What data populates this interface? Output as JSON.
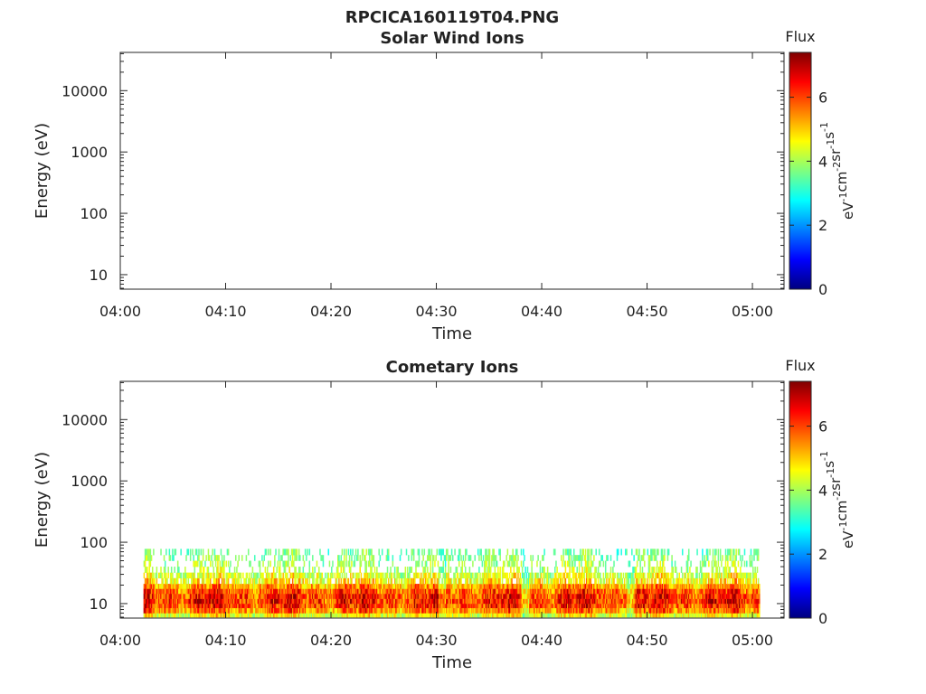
{
  "figure_title": "RPCICA160119T04.PNG",
  "colorbar": {
    "title": "Flux",
    "unit_parts": [
      "eV",
      "-1",
      "cm",
      "-2",
      "sr",
      "-1",
      "s",
      "-1"
    ],
    "ticks": [
      0,
      2,
      4,
      6
    ],
    "range": [
      0,
      7.4
    ],
    "colormap": "jet",
    "colormap_stops": [
      "#00007f",
      "#0000ff",
      "#007fff",
      "#00ffff",
      "#7fff7f",
      "#ffff00",
      "#ff7f00",
      "#ff0000",
      "#7f0000"
    ]
  },
  "chart_data": [
    {
      "type": "heatmap",
      "title": "Solar Wind Ions",
      "xlabel": "Time",
      "ylabel": "Energy (eV)",
      "x_ticks": [
        "04:00",
        "04:10",
        "04:20",
        "04:30",
        "04:40",
        "04:50",
        "05:00"
      ],
      "x_range_minutes": [
        0,
        63
      ],
      "y_scale": "log",
      "y_ticks": [
        "10",
        "100",
        "1000",
        "10000"
      ],
      "y_range": [
        5.8,
        42000
      ],
      "grid": false,
      "cells": []
    },
    {
      "type": "heatmap",
      "title": "Cometary Ions",
      "xlabel": "Time",
      "ylabel": "Energy (eV)",
      "x_ticks": [
        "04:00",
        "04:10",
        "04:20",
        "04:30",
        "04:40",
        "04:50",
        "05:00"
      ],
      "x_range_minutes": [
        0,
        63
      ],
      "y_scale": "log",
      "y_ticks": [
        "10",
        "100",
        "1000",
        "10000"
      ],
      "y_range": [
        5.8,
        42000
      ],
      "grid": false,
      "data_time_range_minutes": [
        2.2,
        60.7
      ],
      "energy_bins_eV": [
        6,
        7,
        8.5,
        10,
        12,
        14.5,
        17.5,
        21,
        26,
        32,
        40,
        50,
        62,
        78
      ],
      "flux_profile_by_energy_bin": [
        4.6,
        5.6,
        6.1,
        6.3,
        6.2,
        5.9,
        5.4,
        4.8,
        4.4,
        4.1,
        3.9,
        3.7,
        3.5,
        3.3
      ],
      "coverage_note_times_min": {
        "quiet_gaps": [
          30.5,
          38.4,
          48.4
        ]
      }
    }
  ]
}
